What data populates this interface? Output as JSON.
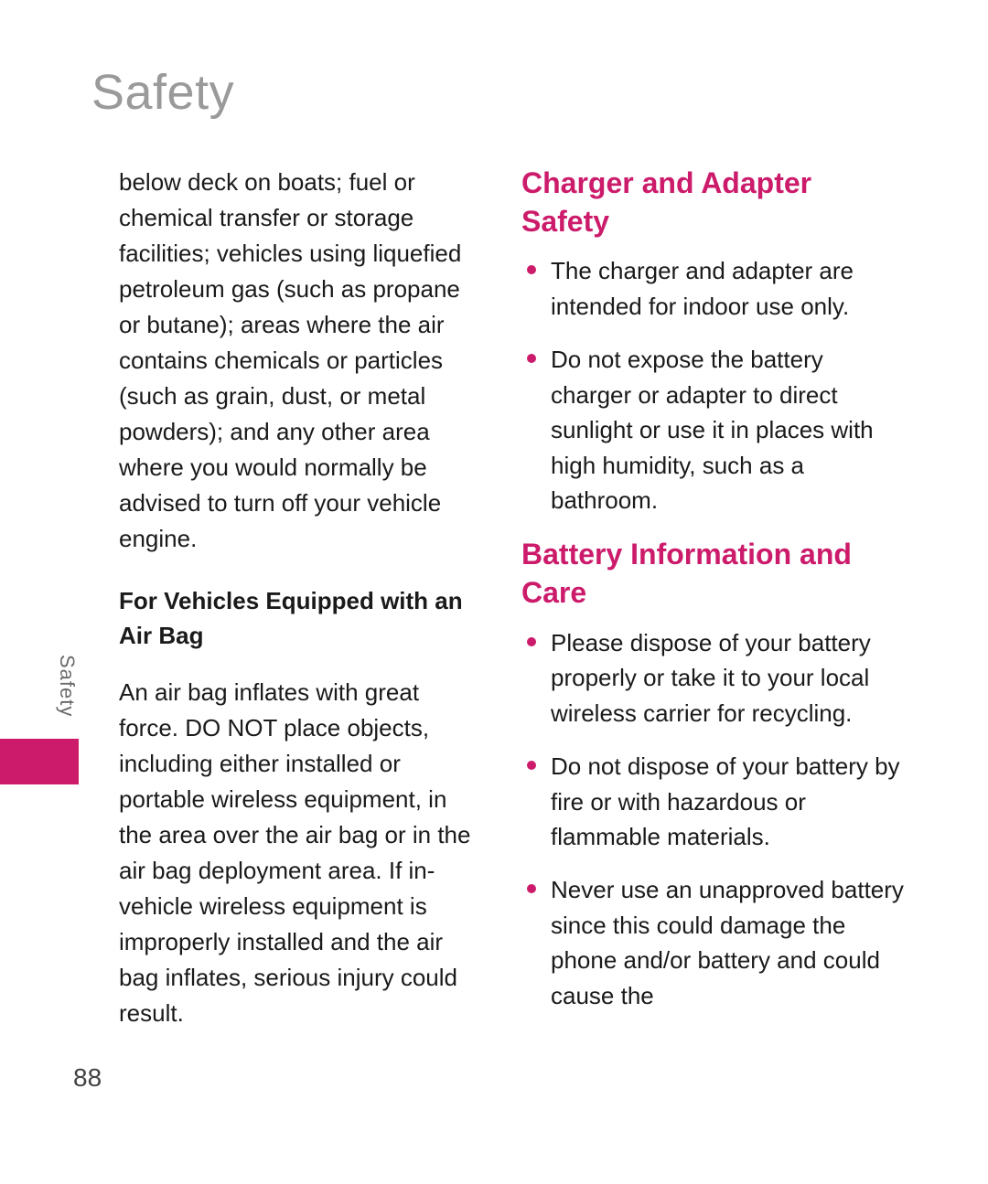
{
  "page": {
    "title": "Safety",
    "side_tab": "Safety",
    "page_number": "88"
  },
  "colors": {
    "title": "#9a9a9a",
    "body": "#1a1a1a",
    "accent": "#cc1b6b",
    "side_label": "#6a6a6a",
    "page_num": "#424242",
    "background": "#ffffff"
  },
  "typography": {
    "title_size_pt": 41,
    "body_size_pt": 20,
    "heading_size_pt": 24,
    "subheading_size_pt": 20,
    "side_label_size_pt": 17,
    "page_num_size_pt": 21
  },
  "left_column": {
    "lead_paragraph": "below deck on boats; fuel or chemical transfer or storage facilities; vehicles using liquefied petroleum gas (such as propane or butane); areas where the air contains chemicals or particles (such as grain, dust, or metal powders); and any other area where you would normally be advised to turn off your vehicle engine.",
    "subheading": "For Vehicles Equipped with an Air Bag",
    "paragraph_2": "An air bag inflates with great force. DO NOT place objects, including either installed or portable wireless equipment, in the area over the air bag or in the air bag deployment area. If in-vehicle wireless equipment is improperly installed and the air bag inflates, serious injury could result."
  },
  "right_column": {
    "section_1": {
      "heading": "Charger and Adapter Safety",
      "bullets": [
        "The charger and adapter are intended for indoor use only.",
        "Do not expose the battery charger or adapter to direct sunlight or use it in places with high humidity, such as a bathroom."
      ]
    },
    "section_2": {
      "heading": "Battery Information and Care",
      "bullets": [
        "Please dispose of your battery properly or take it to your local wireless carrier for recycling.",
        "Do not dispose of your battery by fire or with hazardous or flammable materials.",
        "Never use an unapproved battery since this could damage the phone and/or battery and could cause the"
      ]
    }
  }
}
